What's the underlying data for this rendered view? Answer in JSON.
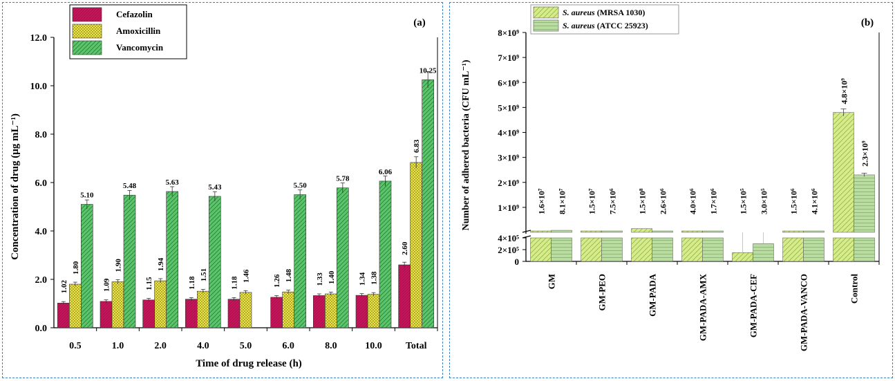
{
  "colors": {
    "cefazolin": "#c2185b",
    "amoxicillin": "#f2ec4a",
    "vancomycin": "#5cc46b",
    "mrsa": "#d6ec8a",
    "atcc": "#b9dca0",
    "border": "#3a7fc1"
  },
  "chart_data": [
    {
      "type": "bar",
      "panel_label": "(a)",
      "title": "",
      "xlabel": "Time of drug release (h)",
      "ylabel": "Concentration of drug (μg mL⁻¹)",
      "ylim": [
        0,
        12
      ],
      "yticks": [
        "0.0",
        "2.0",
        "4.0",
        "6.0",
        "8.0",
        "10.0",
        "12.0"
      ],
      "categories": [
        "0.5",
        "1.0",
        "2.0",
        "4.0",
        "5.0",
        "6.0",
        "8.0",
        "10.0",
        "Total"
      ],
      "legend_position": "top-left",
      "series": [
        {
          "name": "Cefazolin",
          "values": [
            1.02,
            1.09,
            1.15,
            1.18,
            1.18,
            1.26,
            1.33,
            1.34,
            2.6
          ],
          "labels": [
            "1.02",
            "1.09",
            "1.15",
            "1.18",
            "1.18",
            "1.26",
            "1.33",
            "1.34",
            "2.60"
          ]
        },
        {
          "name": "Amoxicillin",
          "values": [
            1.8,
            1.9,
            1.94,
            1.51,
            1.46,
            1.48,
            1.4,
            1.38,
            6.83
          ],
          "labels": [
            "1.80",
            "1.90",
            "1.94",
            "1.51",
            "1.46",
            "1.48",
            "1.40",
            "1.38",
            "6.83"
          ]
        },
        {
          "name": "Vancomycin",
          "values": [
            5.1,
            5.48,
            5.63,
            5.43,
            null,
            5.5,
            5.78,
            6.06,
            10.25
          ],
          "labels": [
            "5.10",
            "5.48",
            "5.63",
            "5.43",
            "",
            "5.50",
            "5.78",
            "6.06",
            "10.25"
          ]
        }
      ]
    },
    {
      "type": "bar",
      "panel_label": "(b)",
      "title": "",
      "xlabel": "",
      "ylabel": "Number of adhered bacteria (CFU mL⁻¹)",
      "y_axis_break": true,
      "lower_ylim": [
        0,
        400000
      ],
      "upper_ylim": [
        0,
        8000000000
      ],
      "lower_yticks": [
        "0",
        "2×10⁵",
        "4×10⁵"
      ],
      "upper_yticks": [
        "1×10⁹",
        "2×10⁹",
        "3×10⁹",
        "4×10⁹",
        "5×10⁹",
        "6×10⁹",
        "7×10⁹",
        "8×10⁹"
      ],
      "categories": [
        "GM",
        "GM-PEO",
        "GM-PADA",
        "GM-PADA-AMX",
        "GM-PADA-CEF",
        "GM-PADA-VANCO",
        "Control"
      ],
      "legend_position": "top-left",
      "series": [
        {
          "name_italic": "S. aureus",
          "name_rest": " (MRSA 1030)",
          "values": [
            16000000,
            15000000,
            150000000,
            4000000,
            150000,
            1500000,
            4800000000
          ],
          "labels": [
            "1.6×10⁷",
            "1.5×10⁷",
            "1.5×10⁸",
            "4.0×10⁶",
            "1.5×10⁵",
            "1.5×10⁶",
            "4.8×10⁹"
          ]
        },
        {
          "name_italic": "S. aureus",
          "name_rest": " (ATCC 25923)",
          "values": [
            81000000,
            7500000,
            2600000,
            1700000,
            300000,
            4100000,
            2300000000
          ],
          "labels": [
            "8.1×10⁷",
            "7.5×10⁶",
            "2.6×10⁶",
            "1.7×10⁶",
            "3.0×10⁵",
            "4.1×10⁶",
            "2.3×10⁹"
          ]
        }
      ]
    }
  ]
}
